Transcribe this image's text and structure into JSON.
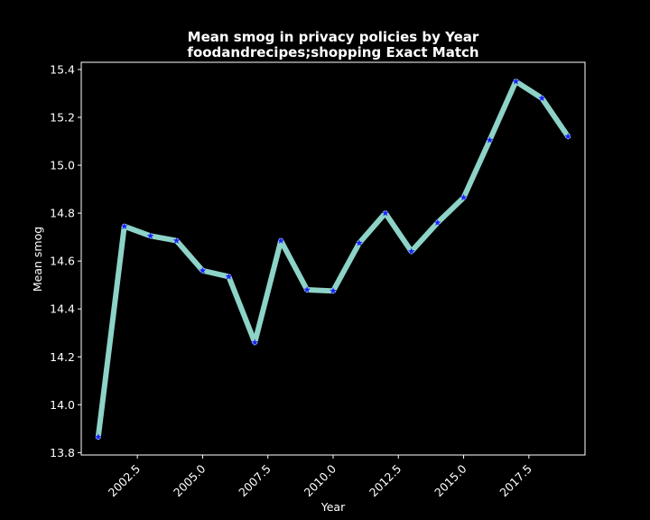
{
  "chart_data": {
    "type": "line",
    "title": "Mean smog in privacy policies by Year",
    "subtitle": "foodandrecipes;shopping Exact Match",
    "xlabel": "Year",
    "ylabel": "Mean smog",
    "xlim": [
      2000.35,
      2019.65
    ],
    "ylim": [
      13.79,
      15.43
    ],
    "xticks": [
      2002.5,
      2005.0,
      2007.5,
      2010.0,
      2012.5,
      2015.0,
      2017.5
    ],
    "xtick_labels": [
      "2002.5",
      "2005.0",
      "2007.5",
      "2010.0",
      "2012.5",
      "2015.0",
      "2017.5"
    ],
    "yticks": [
      13.8,
      14.0,
      14.2,
      14.4,
      14.6,
      14.8,
      15.0,
      15.2,
      15.4
    ],
    "ytick_labels": [
      "13.8",
      "14.0",
      "14.2",
      "14.4",
      "14.6",
      "14.8",
      "15.0",
      "15.2",
      "15.4"
    ],
    "grid": false,
    "series": [
      {
        "x": [
          2001,
          2002,
          2003,
          2004,
          2005,
          2006,
          2007,
          2008,
          2009,
          2010,
          2011,
          2012,
          2013,
          2014,
          2015,
          2016,
          2017,
          2018,
          2019
        ],
        "values": [
          13.865,
          14.745,
          14.705,
          14.685,
          14.56,
          14.535,
          14.26,
          14.685,
          14.48,
          14.475,
          14.675,
          14.8,
          14.64,
          14.76,
          14.865,
          15.105,
          15.35,
          15.28,
          15.12
        ],
        "line_color": "#8dd3c7",
        "marker": "star",
        "marker_color": "#1f1fff"
      }
    ]
  }
}
